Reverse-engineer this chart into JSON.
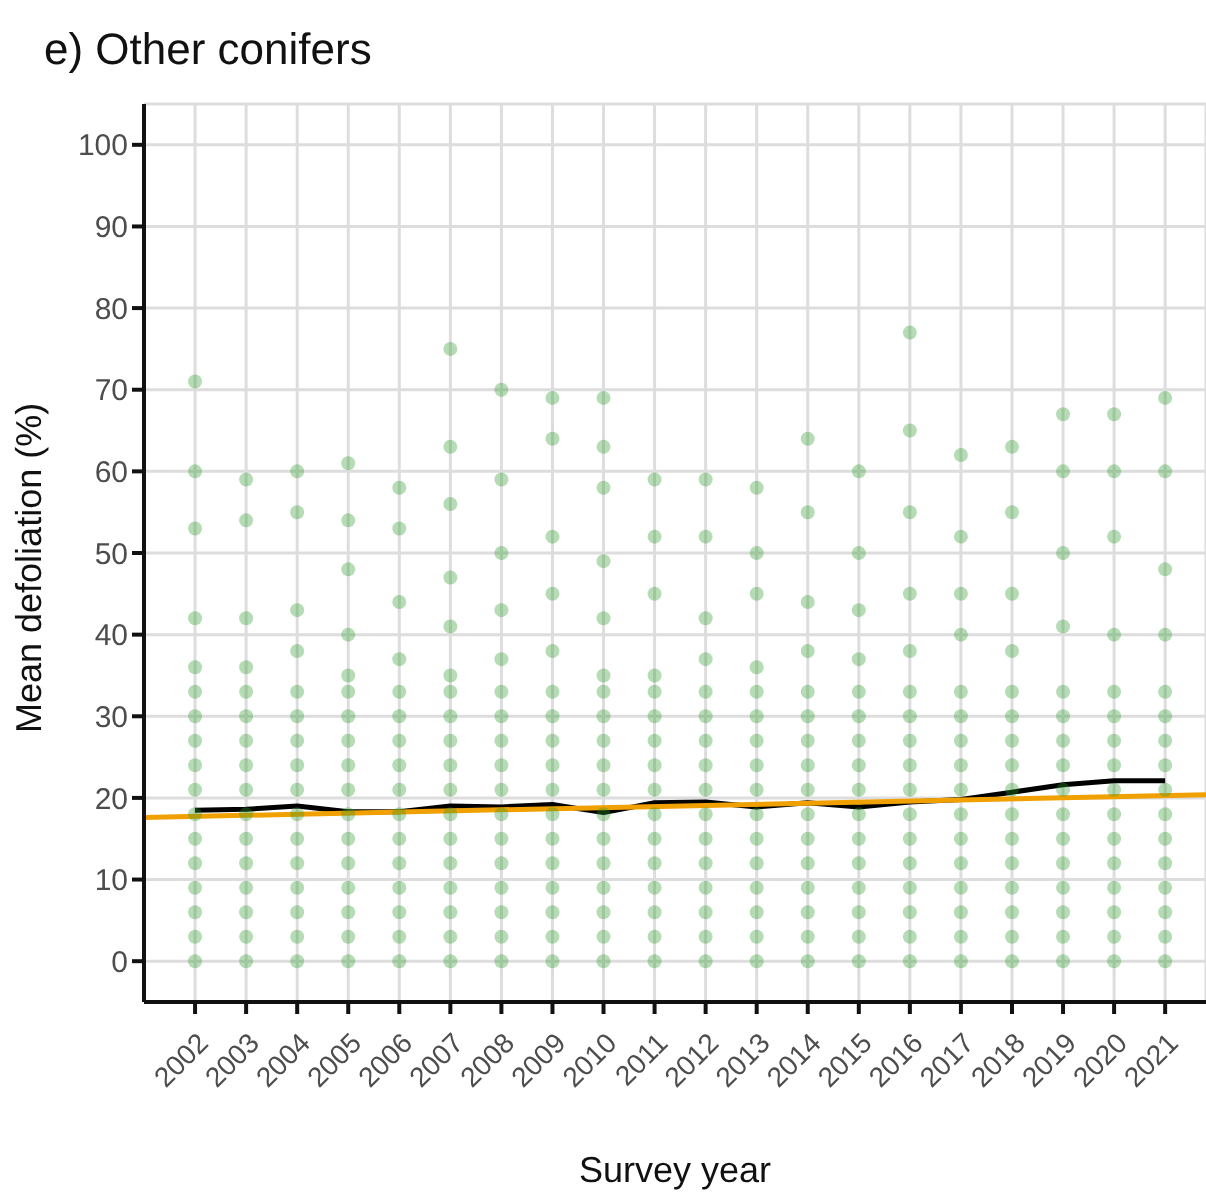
{
  "chart_data": {
    "type": "scatter",
    "title": "e) Other conifers",
    "xlabel": "Survey year",
    "ylabel": "Mean defoliation (%)",
    "xlim": [
      2001,
      2021.8
    ],
    "xticks": [
      2002,
      2003,
      2004,
      2005,
      2006,
      2007,
      2008,
      2009,
      2010,
      2011,
      2012,
      2013,
      2014,
      2015,
      2016,
      2017,
      2018,
      2019,
      2020,
      2021
    ],
    "ylim": [
      -5,
      105
    ],
    "yticks": [
      0,
      10,
      20,
      30,
      40,
      50,
      60,
      70,
      80,
      90,
      100
    ],
    "grid": true,
    "legend": false,
    "marker": "circle",
    "series": [
      {
        "color": "#2e9a2e",
        "x": [
          2002,
          2002,
          2002,
          2002,
          2002,
          2002,
          2002,
          2002,
          2002,
          2002,
          2002,
          2002,
          2002,
          2002,
          2002,
          2002,
          2002
        ],
        "values": [
          0,
          3,
          6,
          9,
          12,
          15,
          18,
          21,
          24,
          27,
          30,
          33,
          36,
          42,
          53,
          60,
          71
        ]
      },
      {
        "color": "#2e9a2e",
        "x": [
          2003,
          2003,
          2003,
          2003,
          2003,
          2003,
          2003,
          2003,
          2003,
          2003,
          2003,
          2003,
          2003,
          2003,
          2003,
          2003
        ],
        "values": [
          0,
          3,
          6,
          9,
          12,
          15,
          18,
          21,
          24,
          27,
          30,
          33,
          36,
          42,
          54,
          59
        ]
      },
      {
        "color": "#2e9a2e",
        "x": [
          2004,
          2004,
          2004,
          2004,
          2004,
          2004,
          2004,
          2004,
          2004,
          2004,
          2004,
          2004,
          2004,
          2004,
          2004,
          2004
        ],
        "values": [
          0,
          3,
          6,
          9,
          12,
          15,
          18,
          21,
          24,
          27,
          30,
          33,
          38,
          43,
          55,
          60
        ]
      },
      {
        "color": "#2e9a2e",
        "x": [
          2005,
          2005,
          2005,
          2005,
          2005,
          2005,
          2005,
          2005,
          2005,
          2005,
          2005,
          2005,
          2005,
          2005,
          2005,
          2005,
          2005
        ],
        "values": [
          0,
          3,
          6,
          9,
          12,
          15,
          18,
          21,
          24,
          27,
          30,
          33,
          35,
          40,
          48,
          54,
          61
        ]
      },
      {
        "color": "#2e9a2e",
        "x": [
          2006,
          2006,
          2006,
          2006,
          2006,
          2006,
          2006,
          2006,
          2006,
          2006,
          2006,
          2006,
          2006,
          2006,
          2006,
          2006
        ],
        "values": [
          0,
          3,
          6,
          9,
          12,
          15,
          18,
          21,
          24,
          27,
          30,
          33,
          37,
          44,
          53,
          58
        ]
      },
      {
        "color": "#2e9a2e",
        "x": [
          2007,
          2007,
          2007,
          2007,
          2007,
          2007,
          2007,
          2007,
          2007,
          2007,
          2007,
          2007,
          2007,
          2007,
          2007,
          2007,
          2007,
          2007
        ],
        "values": [
          0,
          3,
          6,
          9,
          12,
          15,
          18,
          21,
          24,
          27,
          30,
          33,
          35,
          41,
          47,
          56,
          63,
          75
        ]
      },
      {
        "color": "#2e9a2e",
        "x": [
          2008,
          2008,
          2008,
          2008,
          2008,
          2008,
          2008,
          2008,
          2008,
          2008,
          2008,
          2008,
          2008,
          2008,
          2008,
          2008,
          2008
        ],
        "values": [
          0,
          3,
          6,
          9,
          12,
          15,
          18,
          21,
          24,
          27,
          30,
          33,
          37,
          43,
          50,
          59,
          70
        ]
      },
      {
        "color": "#2e9a2e",
        "x": [
          2009,
          2009,
          2009,
          2009,
          2009,
          2009,
          2009,
          2009,
          2009,
          2009,
          2009,
          2009,
          2009,
          2009,
          2009,
          2009,
          2009
        ],
        "values": [
          0,
          3,
          6,
          9,
          12,
          15,
          18,
          21,
          24,
          27,
          30,
          33,
          38,
          45,
          52,
          64,
          69
        ]
      },
      {
        "color": "#2e9a2e",
        "x": [
          2010,
          2010,
          2010,
          2010,
          2010,
          2010,
          2010,
          2010,
          2010,
          2010,
          2010,
          2010,
          2010,
          2010,
          2010,
          2010,
          2010,
          2010
        ],
        "values": [
          0,
          3,
          6,
          9,
          12,
          15,
          18,
          21,
          24,
          27,
          30,
          33,
          35,
          42,
          49,
          58,
          63,
          69
        ]
      },
      {
        "color": "#2e9a2e",
        "x": [
          2011,
          2011,
          2011,
          2011,
          2011,
          2011,
          2011,
          2011,
          2011,
          2011,
          2011,
          2011,
          2011,
          2011,
          2011,
          2011
        ],
        "values": [
          0,
          3,
          6,
          9,
          12,
          15,
          18,
          21,
          24,
          27,
          30,
          33,
          35,
          45,
          52,
          59
        ]
      },
      {
        "color": "#2e9a2e",
        "x": [
          2012,
          2012,
          2012,
          2012,
          2012,
          2012,
          2012,
          2012,
          2012,
          2012,
          2012,
          2012,
          2012,
          2012,
          2012,
          2012
        ],
        "values": [
          0,
          3,
          6,
          9,
          12,
          15,
          18,
          21,
          24,
          27,
          30,
          33,
          37,
          42,
          52,
          59
        ]
      },
      {
        "color": "#2e9a2e",
        "x": [
          2013,
          2013,
          2013,
          2013,
          2013,
          2013,
          2013,
          2013,
          2013,
          2013,
          2013,
          2013,
          2013,
          2013,
          2013,
          2013
        ],
        "values": [
          0,
          3,
          6,
          9,
          12,
          15,
          18,
          21,
          24,
          27,
          30,
          33,
          36,
          45,
          50,
          58
        ]
      },
      {
        "color": "#2e9a2e",
        "x": [
          2014,
          2014,
          2014,
          2014,
          2014,
          2014,
          2014,
          2014,
          2014,
          2014,
          2014,
          2014,
          2014,
          2014,
          2014,
          2014
        ],
        "values": [
          0,
          3,
          6,
          9,
          12,
          15,
          18,
          21,
          24,
          27,
          30,
          33,
          38,
          44,
          55,
          64
        ]
      },
      {
        "color": "#2e9a2e",
        "x": [
          2015,
          2015,
          2015,
          2015,
          2015,
          2015,
          2015,
          2015,
          2015,
          2015,
          2015,
          2015,
          2015,
          2015,
          2015,
          2015
        ],
        "values": [
          0,
          3,
          6,
          9,
          12,
          15,
          18,
          21,
          24,
          27,
          30,
          33,
          37,
          43,
          50,
          60
        ]
      },
      {
        "color": "#2e9a2e",
        "x": [
          2016,
          2016,
          2016,
          2016,
          2016,
          2016,
          2016,
          2016,
          2016,
          2016,
          2016,
          2016,
          2016,
          2016,
          2016,
          2016,
          2016
        ],
        "values": [
          0,
          3,
          6,
          9,
          12,
          15,
          18,
          21,
          24,
          27,
          30,
          33,
          38,
          45,
          55,
          65,
          77
        ]
      },
      {
        "color": "#2e9a2e",
        "x": [
          2017,
          2017,
          2017,
          2017,
          2017,
          2017,
          2017,
          2017,
          2017,
          2017,
          2017,
          2017,
          2017,
          2017,
          2017,
          2017
        ],
        "values": [
          0,
          3,
          6,
          9,
          12,
          15,
          18,
          21,
          24,
          27,
          30,
          33,
          40,
          45,
          52,
          62
        ]
      },
      {
        "color": "#2e9a2e",
        "x": [
          2018,
          2018,
          2018,
          2018,
          2018,
          2018,
          2018,
          2018,
          2018,
          2018,
          2018,
          2018,
          2018,
          2018,
          2018,
          2018
        ],
        "values": [
          0,
          3,
          6,
          9,
          12,
          15,
          18,
          21,
          24,
          27,
          30,
          33,
          38,
          45,
          55,
          63
        ]
      },
      {
        "color": "#2e9a2e",
        "x": [
          2019,
          2019,
          2019,
          2019,
          2019,
          2019,
          2019,
          2019,
          2019,
          2019,
          2019,
          2019,
          2019,
          2019,
          2019,
          2019
        ],
        "values": [
          0,
          3,
          6,
          9,
          12,
          15,
          18,
          21,
          24,
          27,
          30,
          33,
          41,
          50,
          60,
          67
        ]
      },
      {
        "color": "#2e9a2e",
        "x": [
          2020,
          2020,
          2020,
          2020,
          2020,
          2020,
          2020,
          2020,
          2020,
          2020,
          2020,
          2020,
          2020,
          2020,
          2020,
          2020
        ],
        "values": [
          0,
          3,
          6,
          9,
          12,
          15,
          18,
          21,
          24,
          27,
          30,
          33,
          40,
          52,
          60,
          67
        ]
      },
      {
        "color": "#2e9a2e",
        "x": [
          2021,
          2021,
          2021,
          2021,
          2021,
          2021,
          2021,
          2021,
          2021,
          2021,
          2021,
          2021,
          2021,
          2021,
          2021,
          2021
        ],
        "values": [
          0,
          3,
          6,
          9,
          12,
          15,
          18,
          21,
          24,
          27,
          30,
          33,
          40,
          48,
          60,
          69
        ]
      },
      {
        "type": "line",
        "marker": "none",
        "line_style": "solid",
        "color": "#000000",
        "x": [
          2002,
          2003,
          2004,
          2005,
          2006,
          2007,
          2008,
          2009,
          2010,
          2011,
          2012,
          2013,
          2014,
          2015,
          2016,
          2017,
          2018,
          2019,
          2020,
          2021
        ],
        "values": [
          18.5,
          18.6,
          19,
          18.3,
          18.3,
          19,
          18.9,
          19.2,
          18.2,
          19.4,
          19.5,
          18.9,
          19.4,
          18.9,
          19.5,
          19.8,
          20.7,
          21.6,
          22.1,
          22.1
        ]
      },
      {
        "type": "line",
        "marker": "none",
        "line_style": "solid",
        "color": "#f0a000",
        "x": [
          2001,
          2021.8
        ],
        "values": [
          17.6,
          20.4
        ]
      }
    ]
  }
}
